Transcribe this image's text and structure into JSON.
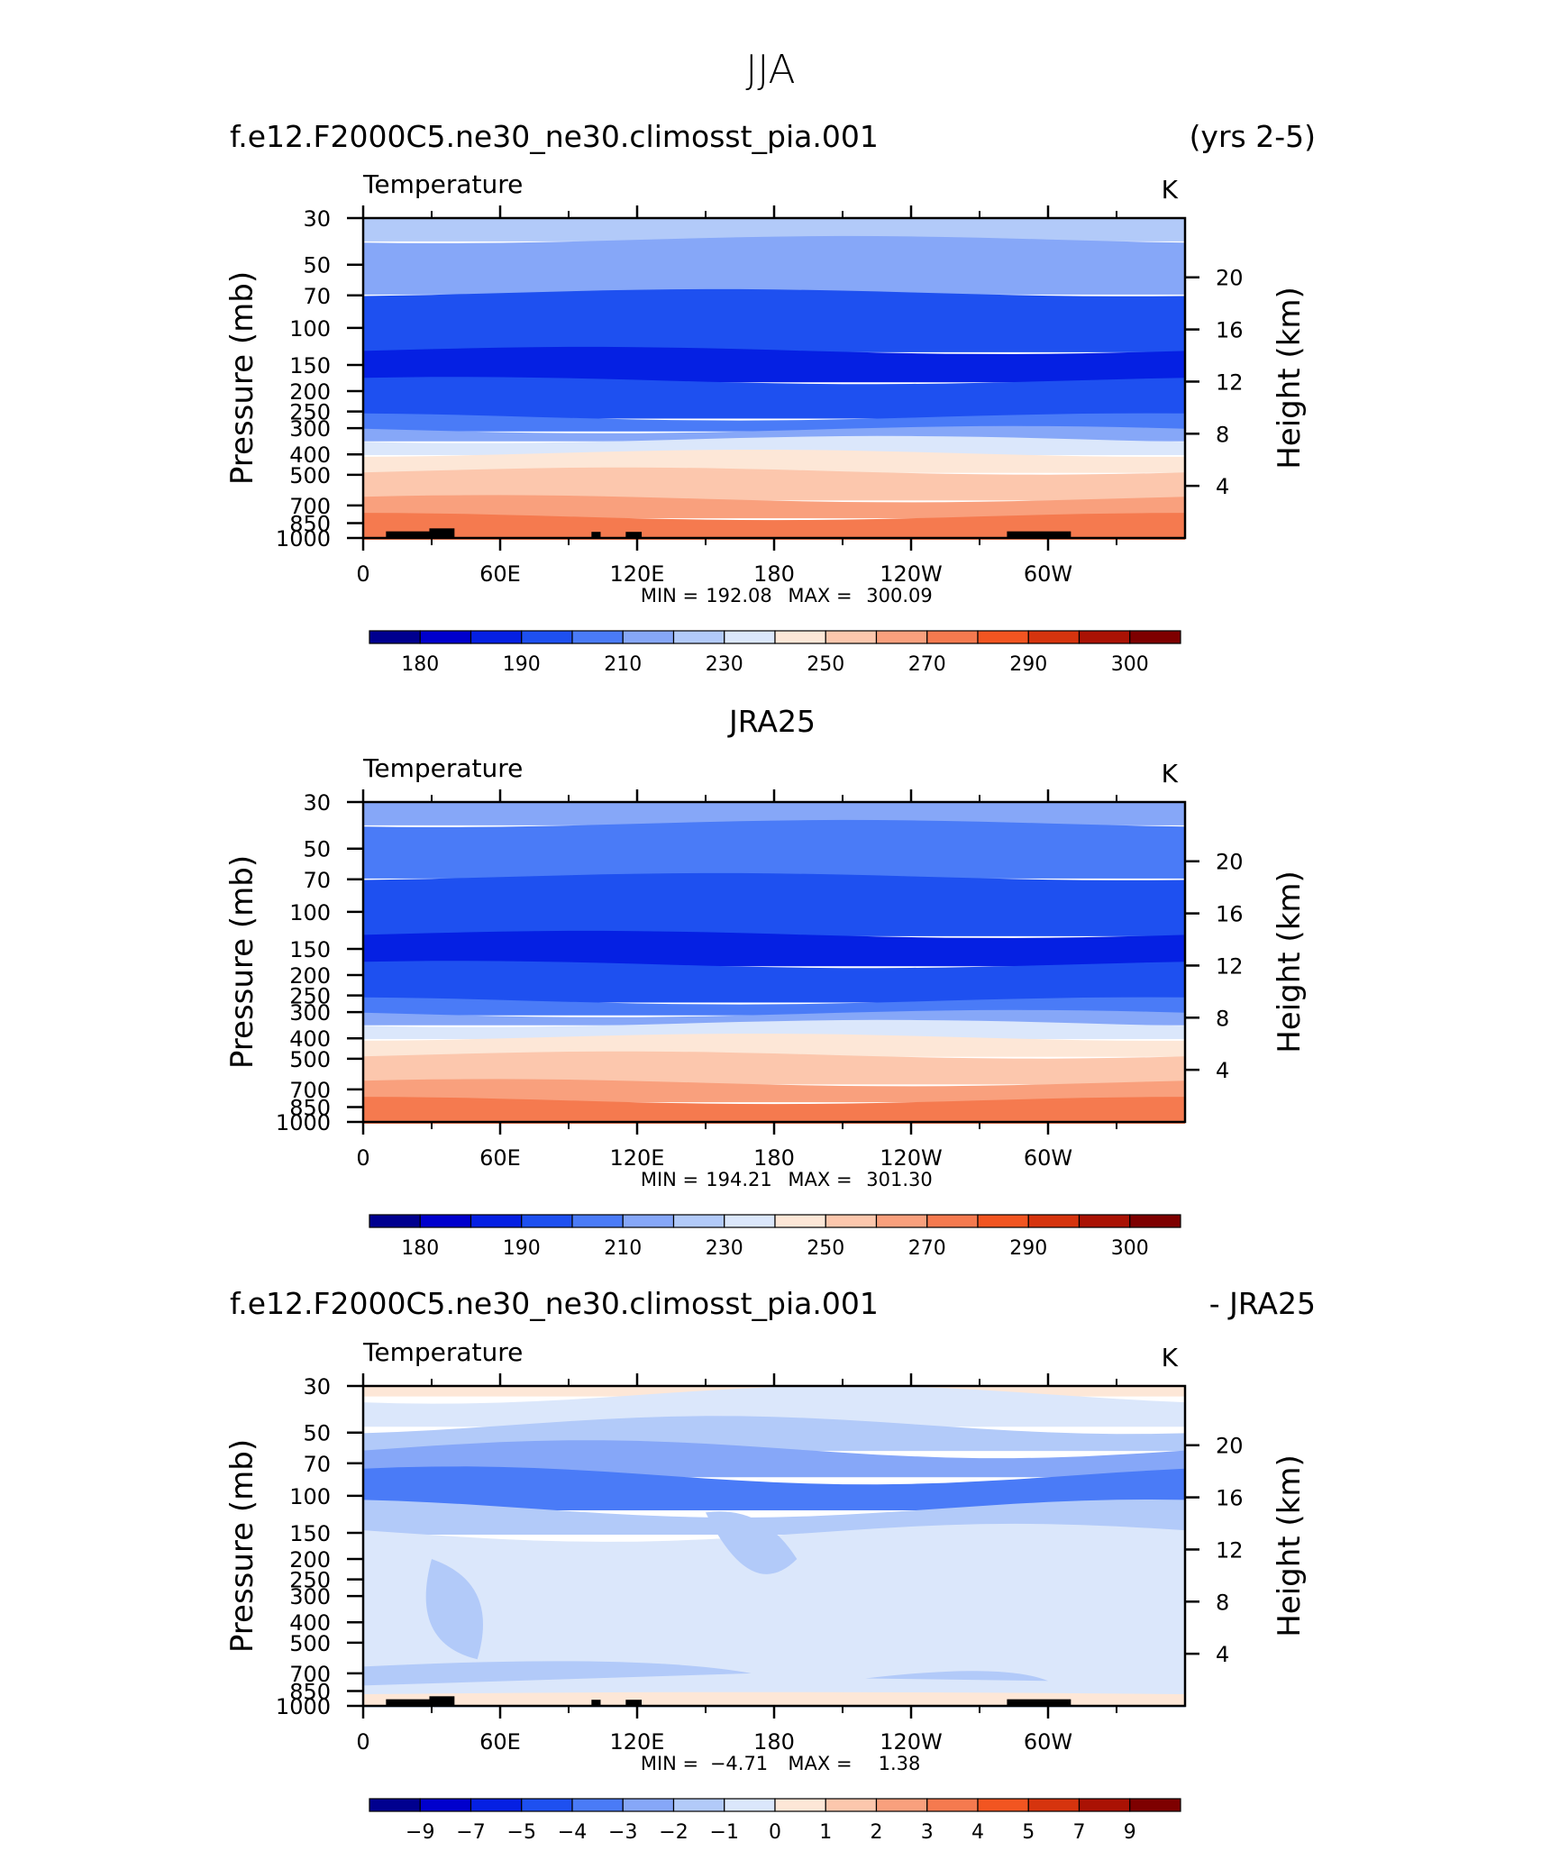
{
  "figure": {
    "title": "JJA",
    "top_header_left": "f.e12.F2000C5.ne30_ne30.climosst_pia.001",
    "top_header_right": "(yrs 2-5)",
    "middle_header": "JRA25",
    "bottom_header_left": "f.e12.F2000C5.ne30_ne30.climosst_pia.001",
    "bottom_header_right": "- JRA25"
  },
  "colors": {
    "abs_palette": [
      "#00008f",
      "#0000cd",
      "#0520e3",
      "#1e50f0",
      "#4a7bf7",
      "#86a7f8",
      "#b2caf9",
      "#dbe7fb",
      "#fde7d7",
      "#fcc7ad",
      "#f9a07d",
      "#f57a4f",
      "#f25521",
      "#d6340e",
      "#aa1204",
      "#7e0000"
    ],
    "diff_palette": [
      "#00008f",
      "#0000cd",
      "#0520e3",
      "#1e50f0",
      "#4a7bf7",
      "#86a7f8",
      "#b2caf9",
      "#dbe7fb",
      "#fde7d7",
      "#fcc7ad",
      "#f9a07d",
      "#f57a4f",
      "#f25521",
      "#d6340e",
      "#aa1204",
      "#7e0000"
    ],
    "topography": "#000000"
  },
  "chart_data": [
    {
      "type": "heatmap",
      "title": "Temperature",
      "units": "K",
      "ylabel": "Pressure (mb)",
      "ylabel2": "Height (km)",
      "x_ticks": [
        "0",
        "60E",
        "120E",
        "180",
        "120W",
        "60W"
      ],
      "y_ticks": [
        "30",
        "50",
        "70",
        "100",
        "150",
        "200",
        "250",
        "300",
        "400",
        "500",
        "700",
        "850",
        "1000"
      ],
      "y2_ticks": [
        "20",
        "16",
        "12",
        "8",
        "4"
      ],
      "y_scale": "log",
      "ylim": [
        1000,
        30
      ],
      "xlim": [
        0,
        360
      ],
      "stats": {
        "min_label": "MIN =",
        "min": "192.08",
        "max_label": "MAX =",
        "max": "300.09"
      },
      "colorbar_labels": [
        "180",
        "190",
        "210",
        "230",
        "250",
        "270",
        "290",
        "300"
      ],
      "bands_p": [
        30,
        38,
        68,
        128,
        178,
        265,
        305,
        340,
        395,
        480,
        650,
        790,
        1000
      ],
      "bands_c": [
        6,
        5,
        3,
        2,
        3,
        4,
        5,
        7,
        8,
        9,
        10,
        11,
        12
      ]
    },
    {
      "type": "heatmap",
      "title": "Temperature",
      "units": "K",
      "ylabel": "Pressure (mb)",
      "ylabel2": "Height (km)",
      "x_ticks": [
        "0",
        "60E",
        "120E",
        "180",
        "120W",
        "60W"
      ],
      "y_ticks": [
        "30",
        "50",
        "70",
        "100",
        "150",
        "200",
        "250",
        "300",
        "400",
        "500",
        "700",
        "850",
        "1000"
      ],
      "y2_ticks": [
        "20",
        "16",
        "12",
        "8",
        "4"
      ],
      "y_scale": "log",
      "ylim": [
        1000,
        30
      ],
      "xlim": [
        0,
        360
      ],
      "stats": {
        "min_label": "MIN =",
        "min": "194.21",
        "max_label": "MAX =",
        "max": "301.30"
      },
      "colorbar_labels": [
        "180",
        "190",
        "210",
        "230",
        "250",
        "270",
        "290",
        "300"
      ],
      "bands_p": [
        30,
        38,
        68,
        128,
        178,
        265,
        305,
        340,
        395,
        480,
        650,
        790,
        1000
      ],
      "bands_c": [
        5,
        4,
        3,
        2,
        3,
        4,
        5,
        7,
        8,
        9,
        10,
        11,
        12
      ]
    },
    {
      "type": "heatmap",
      "title": "Temperature",
      "units": "K",
      "ylabel": "Pressure (mb)",
      "ylabel2": "Height (km)",
      "x_ticks": [
        "0",
        "60E",
        "120E",
        "180",
        "120W",
        "60W"
      ],
      "y_ticks": [
        "30",
        "50",
        "70",
        "100",
        "150",
        "200",
        "250",
        "300",
        "400",
        "500",
        "700",
        "850",
        "1000"
      ],
      "y2_ticks": [
        "20",
        "16",
        "12",
        "8",
        "4"
      ],
      "y_scale": "log",
      "ylim": [
        1000,
        30
      ],
      "xlim": [
        0,
        360
      ],
      "stats": {
        "min_label": "MIN =",
        "min": "−4.71",
        "max_label": "MAX =",
        "max": "1.38"
      },
      "colorbar_labels": [
        "−9",
        "−7",
        "−5",
        "−4",
        "−3",
        "−2",
        "−1",
        "0",
        "1",
        "2",
        "3",
        "4",
        "5",
        "7",
        "9"
      ],
      "bands_p": [
        30,
        33,
        46,
        60,
        80,
        115,
        150,
        900,
        1000
      ],
      "bands_c": [
        8,
        7,
        6,
        5,
        4,
        6,
        7,
        7,
        8
      ]
    }
  ]
}
